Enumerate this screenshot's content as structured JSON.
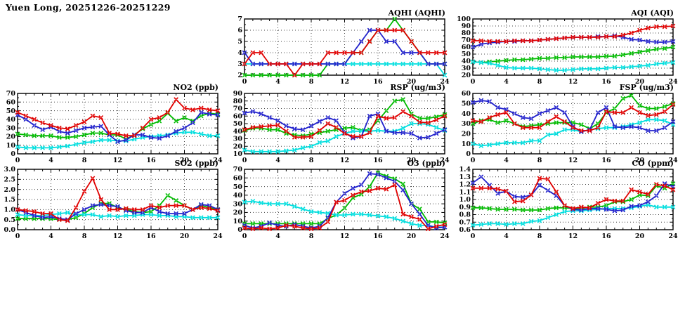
{
  "page_title": "Yuen Long, 20251226-20251229",
  "colors": {
    "red": "#e00000",
    "blue": "#2222cc",
    "green": "#00bb00",
    "cyan": "#00dede",
    "axis": "#000000",
    "grid": "#444444"
  },
  "x_axis": {
    "min": 0,
    "max": 24,
    "major_tick_step": 4,
    "minor_tick_step": 1,
    "tick_labels": [
      "0",
      "4",
      "8",
      "12",
      "16",
      "20",
      "24"
    ]
  },
  "series_draw_order": [
    "green",
    "cyan",
    "blue",
    "red"
  ],
  "chart_data": [
    {
      "id": "aqhi",
      "type": "line",
      "title": "AQHI (AQHI)",
      "col": 2,
      "row": 1,
      "ymin": 2,
      "ymax": 7,
      "ystep": 1,
      "ydec": 0,
      "x": [
        0,
        1,
        2,
        3,
        4,
        5,
        6,
        7,
        8,
        9,
        10,
        11,
        12,
        13,
        14,
        15,
        16,
        17,
        18,
        19,
        20,
        21,
        22,
        23,
        24
      ],
      "series": {
        "red": [
          3,
          4,
          4,
          3,
          3,
          3,
          2,
          3,
          3,
          3,
          4,
          4,
          4,
          4,
          4,
          5,
          6,
          6,
          6,
          6,
          5,
          4,
          4,
          4,
          4
        ],
        "blue": [
          4,
          3,
          3,
          3,
          3,
          3,
          3,
          3,
          3,
          3,
          3,
          3,
          3,
          4,
          5,
          6,
          6,
          5,
          5,
          4,
          4,
          4,
          3,
          3,
          3
        ],
        "green": [
          2,
          2,
          2,
          2,
          2,
          2,
          2,
          2,
          2,
          2,
          3,
          3,
          3,
          4,
          4,
          5,
          6,
          6,
          7,
          6,
          5,
          4,
          3,
          3,
          3
        ],
        "cyan": [
          3,
          3,
          3,
          3,
          3,
          3,
          3,
          3,
          3,
          3,
          3,
          3,
          3,
          3,
          3,
          3,
          3,
          3,
          3,
          3,
          3,
          3,
          3,
          3,
          2
        ]
      }
    },
    {
      "id": "aqi",
      "type": "line",
      "title": "AQI (AQI)",
      "col": 3,
      "row": 1,
      "ymin": 20,
      "ymax": 100,
      "ystep": 10,
      "ydec": 0,
      "x": [
        0,
        1,
        2,
        3,
        4,
        5,
        6,
        7,
        8,
        9,
        10,
        11,
        12,
        13,
        14,
        15,
        16,
        17,
        18,
        19,
        20,
        21,
        22,
        23,
        24
      ],
      "series": {
        "red": [
          69,
          69,
          68,
          68,
          68,
          69,
          69,
          69,
          70,
          71,
          72,
          73,
          74,
          74,
          74,
          74,
          75,
          75,
          77,
          80,
          84,
          87,
          89,
          89,
          90
        ],
        "blue": [
          60,
          64,
          66,
          67,
          68,
          68,
          69,
          69,
          70,
          71,
          72,
          73,
          74,
          74,
          74,
          75,
          75,
          76,
          74,
          71,
          70,
          68,
          67,
          67,
          68
        ],
        "green": [
          39,
          38,
          39,
          40,
          41,
          42,
          42,
          43,
          44,
          44,
          45,
          45,
          46,
          46,
          46,
          46,
          47,
          47,
          49,
          51,
          53,
          55,
          57,
          58,
          60
        ],
        "cyan": [
          39,
          38,
          37,
          34,
          31,
          30,
          30,
          30,
          29,
          28,
          27,
          27,
          28,
          29,
          29,
          29,
          30,
          31,
          31,
          32,
          33,
          34,
          36,
          37,
          38
        ]
      }
    },
    {
      "id": "no2",
      "type": "line",
      "title": "NO2 (ppb)",
      "col": 1,
      "row": 2,
      "ymin": 0,
      "ymax": 70,
      "ystep": 10,
      "ydec": 0,
      "x": [
        0,
        1,
        2,
        3,
        4,
        5,
        6,
        7,
        8,
        9,
        10,
        11,
        12,
        13,
        14,
        15,
        16,
        17,
        18,
        19,
        20,
        21,
        22,
        23,
        24
      ],
      "series": {
        "red": [
          48,
          44,
          40,
          36,
          33,
          30,
          29,
          33,
          37,
          44,
          42,
          24,
          23,
          21,
          21,
          30,
          40,
          42,
          48,
          63,
          53,
          51,
          53,
          51,
          50
        ],
        "blue": [
          45,
          40,
          33,
          28,
          31,
          26,
          24,
          27,
          30,
          31,
          32,
          22,
          14,
          16,
          22,
          22,
          19,
          18,
          21,
          26,
          30,
          36,
          48,
          46,
          45
        ],
        "green": [
          23,
          22,
          21,
          21,
          21,
          19,
          19,
          20,
          22,
          24,
          24,
          22,
          22,
          17,
          22,
          29,
          34,
          38,
          47,
          38,
          42,
          38,
          44,
          47,
          46
        ],
        "cyan": [
          8,
          7,
          7,
          7,
          7,
          8,
          9,
          11,
          13,
          14,
          16,
          16,
          15,
          15,
          17,
          19,
          20,
          21,
          22,
          24,
          25,
          25,
          23,
          21,
          21
        ]
      }
    },
    {
      "id": "rsp",
      "type": "line",
      "title": "RSP (ug/m3)",
      "col": 2,
      "row": 2,
      "ymin": 10,
      "ymax": 90,
      "ystep": 10,
      "ydec": 0,
      "x": [
        0,
        1,
        2,
        3,
        4,
        5,
        6,
        7,
        8,
        9,
        10,
        11,
        12,
        13,
        14,
        15,
        16,
        17,
        18,
        19,
        20,
        21,
        22,
        23,
        24
      ],
      "series": {
        "red": [
          42,
          45,
          46,
          47,
          48,
          40,
          32,
          32,
          33,
          41,
          50,
          45,
          37,
          33,
          33,
          38,
          60,
          57,
          58,
          66,
          60,
          52,
          51,
          55,
          60
        ],
        "blue": [
          64,
          66,
          63,
          58,
          54,
          47,
          43,
          42,
          47,
          53,
          58,
          54,
          38,
          31,
          33,
          60,
          63,
          40,
          38,
          38,
          37,
          31,
          32,
          37,
          42
        ],
        "green": [
          41,
          44,
          44,
          42,
          42,
          37,
          35,
          34,
          36,
          38,
          40,
          42,
          44,
          45,
          41,
          42,
          54,
          67,
          80,
          82,
          63,
          57,
          57,
          59,
          62
        ],
        "cyan": [
          15,
          13,
          13,
          13,
          13,
          14,
          15,
          18,
          20,
          25,
          27,
          33,
          37,
          40,
          40,
          40,
          41,
          40,
          40,
          44,
          50,
          50,
          49,
          45,
          41
        ]
      }
    },
    {
      "id": "fsp",
      "type": "line",
      "title": "FSP (ug/m3)",
      "col": 3,
      "row": 2,
      "ymin": 0,
      "ymax": 60,
      "ystep": 10,
      "ydec": 0,
      "x": [
        0,
        1,
        2,
        3,
        4,
        5,
        6,
        7,
        8,
        9,
        10,
        11,
        12,
        13,
        14,
        15,
        16,
        17,
        18,
        19,
        20,
        21,
        22,
        23,
        24
      ],
      "series": {
        "red": [
          33,
          32,
          36,
          39,
          41,
          30,
          26,
          26,
          26,
          32,
          37,
          32,
          26,
          23,
          23,
          26,
          42,
          41,
          41,
          46,
          41,
          38,
          39,
          42,
          49
        ],
        "blue": [
          51,
          53,
          52,
          46,
          44,
          40,
          36,
          35,
          40,
          43,
          46,
          41,
          27,
          22,
          24,
          41,
          46,
          27,
          26,
          27,
          26,
          23,
          23,
          26,
          32
        ],
        "green": [
          30,
          33,
          34,
          31,
          33,
          30,
          27,
          28,
          29,
          30,
          31,
          31,
          31,
          29,
          25,
          30,
          41,
          45,
          55,
          58,
          48,
          45,
          45,
          47,
          50
        ],
        "cyan": [
          10,
          8,
          9,
          10,
          11,
          11,
          11,
          13,
          13,
          19,
          20,
          24,
          24,
          22,
          24,
          25,
          26,
          26,
          27,
          29,
          31,
          34,
          34,
          33,
          29
        ]
      }
    },
    {
      "id": "so2",
      "type": "line",
      "title": "SO2 (ppb)",
      "col": 1,
      "row": 3,
      "ymin": 0,
      "ymax": 3.0,
      "ystep": 0.5,
      "ydec": 1,
      "x": [
        0,
        1,
        2,
        3,
        4,
        5,
        6,
        7,
        8,
        9,
        10,
        11,
        12,
        13,
        14,
        15,
        16,
        17,
        18,
        19,
        20,
        21,
        22,
        23,
        24
      ],
      "series": {
        "red": [
          1.0,
          0.95,
          0.9,
          0.8,
          0.8,
          0.5,
          0.45,
          1.1,
          1.9,
          2.55,
          1.5,
          1.0,
          1.0,
          1.05,
          1.0,
          1.0,
          1.2,
          1.1,
          1.2,
          1.2,
          1.2,
          1.0,
          1.1,
          1.05,
          0.95
        ],
        "blue": [
          1.0,
          0.85,
          0.7,
          0.6,
          0.65,
          0.55,
          0.5,
          0.8,
          1.0,
          1.2,
          1.25,
          1.2,
          1.15,
          0.95,
          0.85,
          0.85,
          1.1,
          0.9,
          0.8,
          0.8,
          0.8,
          1.0,
          1.25,
          1.2,
          1.0
        ],
        "green": [
          0.55,
          0.55,
          0.55,
          0.55,
          0.55,
          0.5,
          0.5,
          0.6,
          0.8,
          1.1,
          1.3,
          1.3,
          1.1,
          1.0,
          0.9,
          0.85,
          0.9,
          1.2,
          1.7,
          1.45,
          1.2,
          1.0,
          1.2,
          1.1,
          1.0
        ],
        "cyan": [
          0.75,
          0.7,
          0.7,
          0.7,
          0.75,
          0.8,
          0.85,
          0.75,
          0.75,
          0.75,
          0.65,
          0.7,
          0.65,
          0.7,
          0.7,
          0.75,
          0.75,
          0.7,
          0.7,
          0.65,
          0.65,
          0.6,
          0.6,
          0.6,
          0.6
        ]
      }
    },
    {
      "id": "o3",
      "type": "line",
      "title": "O3 (ppb)",
      "col": 2,
      "row": 3,
      "ymin": 0,
      "ymax": 70,
      "ystep": 10,
      "ydec": 0,
      "x": [
        0,
        1,
        2,
        3,
        4,
        5,
        6,
        7,
        8,
        9,
        10,
        11,
        12,
        13,
        14,
        15,
        16,
        17,
        18,
        19,
        20,
        21,
        22,
        23,
        24
      ],
      "series": {
        "red": [
          2,
          1,
          2,
          1,
          2,
          5,
          4,
          2,
          1,
          2,
          9,
          32,
          34,
          40,
          44,
          45,
          48,
          47,
          52,
          18,
          15,
          12,
          1,
          4,
          6
        ],
        "blue": [
          5,
          2,
          4,
          8,
          5,
          4,
          6,
          4,
          2,
          4,
          14,
          32,
          42,
          48,
          52,
          65,
          64,
          60,
          56,
          46,
          30,
          18,
          5,
          2,
          3
        ],
        "green": [
          7,
          7,
          7,
          7,
          7,
          7,
          7,
          7,
          7,
          7,
          13,
          17,
          25,
          37,
          41,
          50,
          66,
          62,
          59,
          53,
          30,
          24,
          9,
          9,
          8
        ],
        "cyan": [
          32,
          33,
          31,
          30,
          30,
          30,
          27,
          24,
          21,
          20,
          19,
          17,
          17,
          18,
          18,
          17,
          16,
          15,
          13,
          10,
          7,
          5,
          5,
          3,
          3
        ]
      }
    },
    {
      "id": "co",
      "type": "line",
      "title": "CO (ppm)",
      "col": 3,
      "row": 3,
      "ymin": 0.6,
      "ymax": 1.4,
      "ystep": 0.1,
      "ydec": 1,
      "x": [
        0,
        1,
        2,
        3,
        4,
        5,
        6,
        7,
        8,
        9,
        10,
        11,
        12,
        13,
        14,
        15,
        16,
        17,
        18,
        19,
        20,
        21,
        22,
        23,
        24
      ],
      "series": {
        "red": [
          1.15,
          1.15,
          1.15,
          1.14,
          1.11,
          0.97,
          0.98,
          1.06,
          1.28,
          1.27,
          1.1,
          0.92,
          0.88,
          0.9,
          0.89,
          0.95,
          1.0,
          0.98,
          0.98,
          1.13,
          1.1,
          1.07,
          1.2,
          1.18,
          1.13
        ],
        "blue": [
          1.22,
          1.3,
          1.19,
          1.08,
          1.11,
          1.04,
          1.03,
          1.06,
          1.19,
          1.12,
          1.05,
          0.92,
          0.87,
          0.86,
          0.88,
          0.88,
          0.87,
          0.85,
          0.86,
          0.91,
          0.92,
          0.97,
          1.05,
          1.21,
          1.17
        ],
        "green": [
          0.89,
          0.89,
          0.88,
          0.87,
          0.87,
          0.87,
          0.86,
          0.86,
          0.86,
          0.88,
          0.89,
          0.89,
          0.88,
          0.88,
          0.9,
          0.9,
          0.92,
          0.97,
          0.97,
          1.0,
          1.06,
          1.05,
          1.18,
          1.15,
          1.21
        ],
        "cyan": [
          0.66,
          0.67,
          0.68,
          0.68,
          0.67,
          0.68,
          0.68,
          0.71,
          0.72,
          0.76,
          0.8,
          0.84,
          0.85,
          0.85,
          0.86,
          0.87,
          0.88,
          0.88,
          0.88,
          0.89,
          0.91,
          0.93,
          0.9,
          0.9,
          0.9
        ]
      }
    }
  ]
}
